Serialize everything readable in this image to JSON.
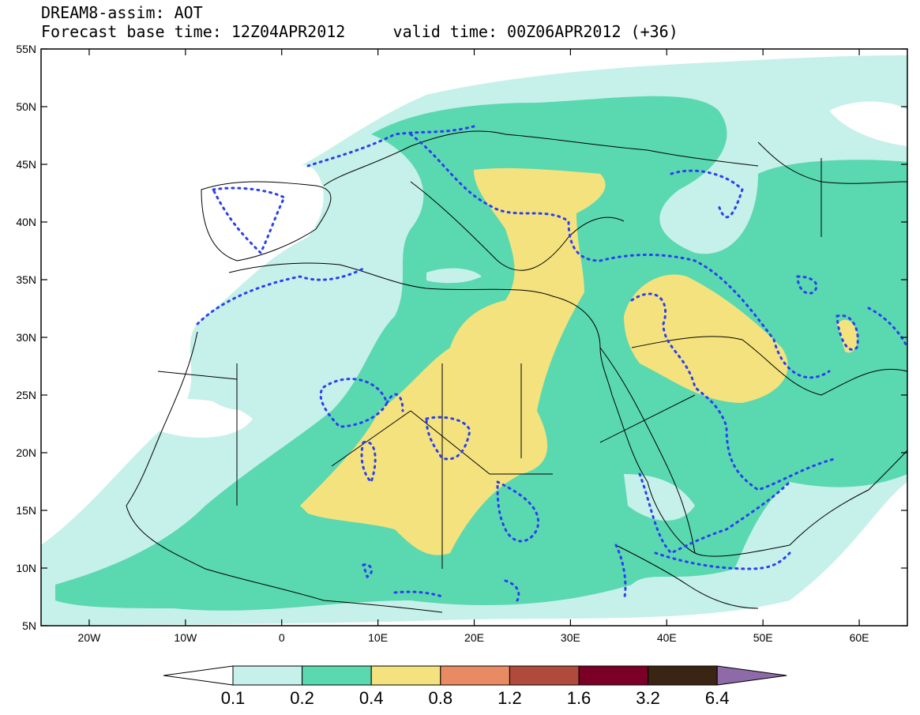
{
  "header": {
    "title": "DREAM8-assim: AOT",
    "base_time_label": "Forecast base time: 12Z04APR2012",
    "valid_time_label": "valid time: 00Z06APR2012 (+36)"
  },
  "map": {
    "lon_range": [
      -25,
      65
    ],
    "lat_range": [
      5,
      55
    ],
    "lat_ticks": [
      "55N",
      "50N",
      "45N",
      "40N",
      "35N",
      "30N",
      "25N",
      "20N",
      "15N",
      "10N",
      "5N"
    ],
    "lon_ticks": [
      "20W",
      "10W",
      "0",
      "10E",
      "20E",
      "30E",
      "40E",
      "50E",
      "60E"
    ]
  },
  "colorbar": {
    "labels": [
      "0.1",
      "0.2",
      "0.4",
      "0.8",
      "1.2",
      "1.6",
      "3.2",
      "6.4"
    ],
    "colors": [
      "#ffffff",
      "#c6f0ea",
      "#5ad8b0",
      "#f4e27e",
      "#e88a62",
      "#b04a3a",
      "#7a0028",
      "#3a2414",
      "#8f6aa8"
    ]
  },
  "colors": {
    "level_01": "#c6f0ea",
    "level_02": "#5ad8b0",
    "level_04": "#f4e27e",
    "contour": "#2b3ff0",
    "coast": "#000000"
  }
}
